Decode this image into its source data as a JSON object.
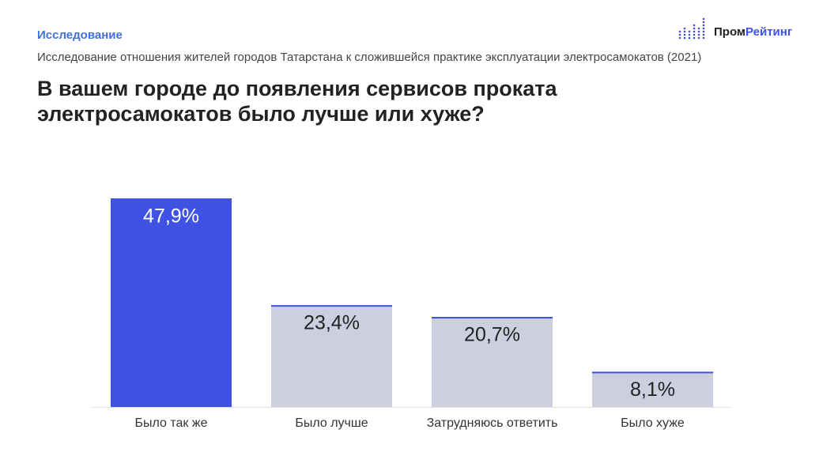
{
  "header": {
    "section": "Исследование",
    "subtitle": "Исследование отношения жителей городов Татарстана к сложившейся практике эксплуатации электросамокатов (2021)",
    "logo": [
      "Пром",
      "Рейтинг"
    ]
  },
  "chart_data": {
    "type": "bar",
    "title": "В вашем городе до появления сервисов проката электросамокатов было лучше или хуже?",
    "categories": [
      "Было так же",
      "Было лучше",
      "Затрудняюсь ответить",
      "Было хуже"
    ],
    "values": [
      47.9,
      23.4,
      20.7,
      8.1
    ],
    "value_labels": [
      "47,9%",
      "23,4%",
      "20,7%",
      "8,1%"
    ],
    "colors": [
      "#3f52e3",
      "#cbcfe0",
      "#cbcfe0",
      "#cbcfe0"
    ],
    "edge_color": "#3f52e3"
  }
}
